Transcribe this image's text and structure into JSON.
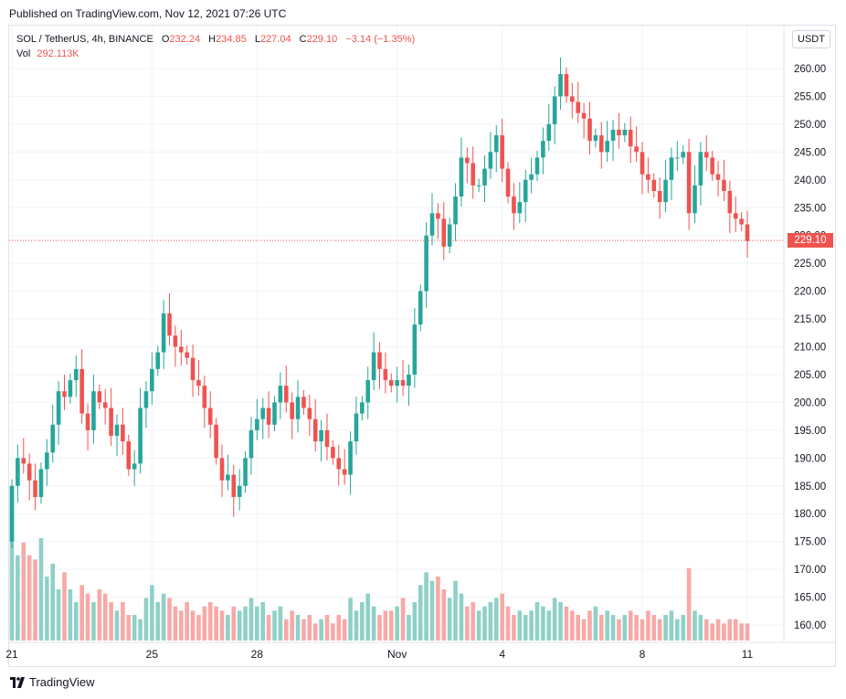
{
  "header": {
    "published": "Published on TradingView.com, Nov 12, 2021 07:26 UTC"
  },
  "legend": {
    "symbol": "SOL / TetherUS, 4h, BINANCE",
    "open_label": "O",
    "open": "232.24",
    "high_label": "H",
    "high": "234.85",
    "low_label": "L",
    "low": "227.04",
    "close_label": "C",
    "close": "229.10",
    "change": "−3.14 (−1.35%)",
    "vol_label": "Vol",
    "vol": "292.113K"
  },
  "currency_button": "USDT",
  "last_price_tag": "229.10",
  "footer": {
    "brand": "TradingView"
  },
  "colors": {
    "up": "#26a69a",
    "down": "#ef5350",
    "up_vol": "#8fd0c7",
    "down_vol": "#f7a9a7",
    "grid": "#f0f3fa",
    "text": "#131722"
  },
  "chart_data": {
    "type": "candlestick",
    "yticks": [
      160,
      165,
      170,
      175,
      180,
      185,
      190,
      195,
      200,
      205,
      210,
      215,
      220,
      225,
      230,
      235,
      240,
      245,
      250,
      255,
      260
    ],
    "yaxis_labels": [
      "160.00",
      "165.00",
      "170.00",
      "175.00",
      "180.00",
      "185.00",
      "190.00",
      "195.00",
      "200.00",
      "205.00",
      "210.00",
      "215.00",
      "220.00",
      "225.00",
      "230.00",
      "235.00",
      "240.00",
      "245.00",
      "250.00",
      "255.00",
      "260.00"
    ],
    "ylim": [
      155,
      266
    ],
    "xtick_labels": [
      "21",
      "25",
      "28",
      "Nov",
      "4",
      "8",
      "11"
    ],
    "xtick_index": [
      0,
      24,
      42,
      66,
      84,
      108,
      126
    ],
    "last_price": 229.1,
    "closes": [
      185,
      190,
      189,
      186,
      183,
      188,
      191,
      196,
      202,
      201,
      204,
      206,
      198,
      195,
      202,
      200,
      199,
      194,
      196,
      193,
      188,
      189,
      199,
      202,
      206,
      209,
      216,
      212,
      210,
      209,
      208,
      204,
      203,
      199,
      196,
      190,
      186,
      187,
      183,
      185,
      190,
      195,
      197,
      199,
      196,
      200,
      203,
      200,
      197,
      201,
      199,
      197,
      193,
      195,
      192,
      190,
      188,
      187,
      193,
      198,
      200,
      204,
      209,
      206,
      204,
      203,
      204,
      203,
      205,
      214,
      220,
      230,
      234,
      233,
      228,
      232,
      237,
      244,
      243,
      239,
      239,
      242,
      245,
      248,
      242,
      237,
      234,
      236,
      240,
      241,
      244,
      247,
      250,
      255,
      259,
      255,
      254,
      252,
      251,
      247,
      248,
      245,
      247,
      249,
      248,
      249,
      246,
      245,
      241,
      240,
      238,
      236,
      240,
      244,
      244,
      245,
      234,
      239,
      245,
      244,
      241,
      240,
      238,
      234,
      233,
      232,
      229
    ],
    "volumes": [
      0.36,
      0.2,
      0.23,
      0.2,
      0.19,
      0.24,
      0.15,
      0.18,
      0.12,
      0.16,
      0.12,
      0.09,
      0.13,
      0.11,
      0.09,
      0.12,
      0.11,
      0.09,
      0.07,
      0.09,
      0.06,
      0.06,
      0.05,
      0.1,
      0.13,
      0.09,
      0.11,
      0.1,
      0.08,
      0.07,
      0.09,
      0.07,
      0.06,
      0.08,
      0.09,
      0.08,
      0.07,
      0.06,
      0.08,
      0.07,
      0.08,
      0.1,
      0.08,
      0.09,
      0.06,
      0.07,
      0.08,
      0.05,
      0.07,
      0.06,
      0.05,
      0.06,
      0.04,
      0.05,
      0.06,
      0.04,
      0.06,
      0.05,
      0.1,
      0.07,
      0.09,
      0.11,
      0.08,
      0.06,
      0.07,
      0.07,
      0.08,
      0.1,
      0.06,
      0.09,
      0.13,
      0.16,
      0.14,
      0.15,
      0.12,
      0.1,
      0.14,
      0.11,
      0.08,
      0.09,
      0.07,
      0.08,
      0.09,
      0.1,
      0.11,
      0.08,
      0.06,
      0.07,
      0.06,
      0.07,
      0.09,
      0.08,
      0.07,
      0.1,
      0.09,
      0.08,
      0.07,
      0.06,
      0.05,
      0.07,
      0.08,
      0.06,
      0.07,
      0.06,
      0.05,
      0.06,
      0.07,
      0.06,
      0.05,
      0.07,
      0.06,
      0.05,
      0.06,
      0.07,
      0.05,
      0.06,
      0.17,
      0.07,
      0.06,
      0.05,
      0.04,
      0.05,
      0.04,
      0.05,
      0.05,
      0.04,
      0.04
    ]
  }
}
